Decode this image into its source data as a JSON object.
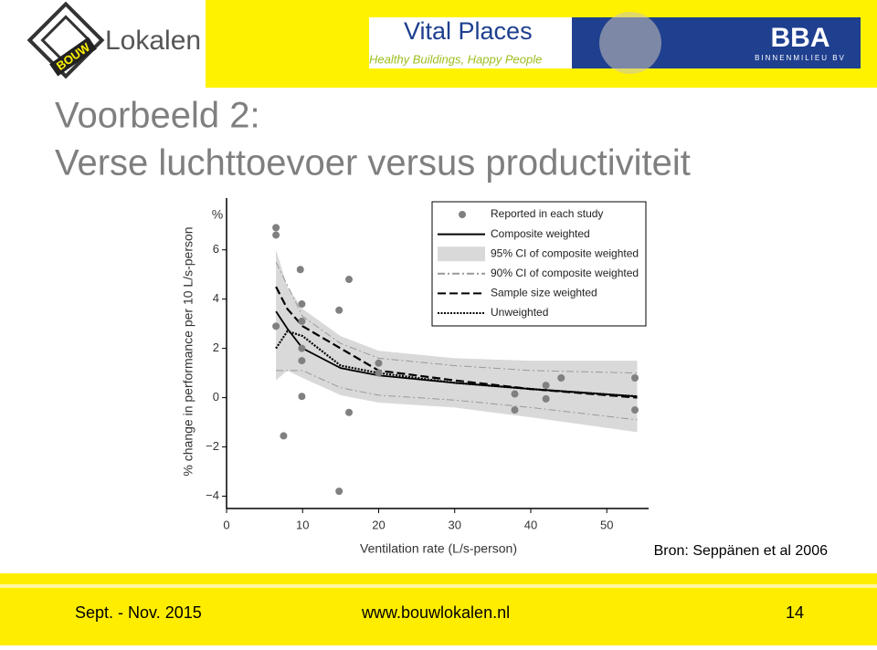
{
  "header": {
    "logo_badge": "BOUW",
    "logo_text": "Lokalen",
    "vital_title": "Vital Places",
    "vital_tagline": "Healthy Buildings, Happy People",
    "bba_title": "BBA",
    "bba_subtitle": "BINNENMILIEU BV"
  },
  "slide": {
    "title_line1": "Voorbeeld 2:",
    "title_line2": "Verse luchttoevoer versus productiviteit",
    "source": "Bron: Seppänen et al 2006"
  },
  "footer": {
    "date": "Sept. - Nov. 2015",
    "url": "www.bouwlokalen.nl",
    "page": "14"
  },
  "chart_data": {
    "type": "scatter",
    "x_label": "Ventilation rate (L/s-person)",
    "y_label": "% change in performance per 10 L/s-person",
    "y_unit": "%",
    "xlim": [
      0,
      55.5
    ],
    "xticks": [
      0,
      10,
      20,
      30,
      40,
      50
    ],
    "ylim": [
      -4.5,
      8.1
    ],
    "yticks": [
      {
        "value": -4,
        "label": "−4"
      },
      {
        "value": -2,
        "label": "−2"
      },
      0,
      2,
      4,
      6
    ],
    "legend": "top-right",
    "series": [
      {
        "name": "Reported in each study",
        "kind": "scatter",
        "color": "#808080",
        "x": [
          6.5,
          6.5,
          6.5,
          7.5,
          9.7,
          9.9,
          9.9,
          9.9,
          9.9,
          9.9,
          14.8,
          14.8,
          16.1,
          16.1,
          20,
          20,
          37.9,
          37.9,
          42,
          42,
          44,
          53.7,
          53.7
        ],
        "values": [
          6.9,
          6.6,
          2.9,
          -1.55,
          5.2,
          3.8,
          3.1,
          2.0,
          1.5,
          0.05,
          3.55,
          -3.8,
          4.8,
          -0.6,
          1.4,
          1.0,
          0.15,
          -0.5,
          0.5,
          -0.05,
          0.8,
          0.8,
          -0.5
        ]
      },
      {
        "name": "Composite weighted",
        "kind": "line",
        "dash": "solid",
        "color": "#000000",
        "x": [
          6.5,
          8,
          10,
          15,
          20,
          30,
          40,
          54
        ],
        "values": [
          3.5,
          2.8,
          2.0,
          1.2,
          0.9,
          0.6,
          0.35,
          0.05
        ]
      },
      {
        "name": "95% CI of composite weighted",
        "kind": "band",
        "color": "#d9d9d9",
        "x": [
          6.5,
          8,
          10,
          15,
          20,
          30,
          40,
          54
        ],
        "upper": [
          6.0,
          4.5,
          3.6,
          2.5,
          1.9,
          1.6,
          1.5,
          1.5
        ],
        "lower": [
          0.7,
          1.1,
          0.8,
          0.1,
          -0.2,
          -0.4,
          -0.8,
          -1.4
        ]
      },
      {
        "name": "90% CI of composite weighted",
        "kind": "bounds",
        "dash": "dashdot",
        "color": "#999999",
        "x": [
          6.5,
          10,
          15,
          20,
          30,
          40,
          54
        ],
        "upper": [
          5.5,
          3.3,
          2.2,
          1.6,
          1.3,
          1.1,
          1.0
        ],
        "lower": [
          1.1,
          1.1,
          0.4,
          0.1,
          -0.1,
          -0.4,
          -0.9
        ]
      },
      {
        "name": "Sample size weighted",
        "kind": "line",
        "dash": "dashed",
        "color": "#000000",
        "x": [
          6.5,
          8,
          10,
          15,
          20,
          30,
          40,
          54
        ],
        "values": [
          4.5,
          3.6,
          2.9,
          2.0,
          1.1,
          0.7,
          0.35,
          0.0
        ]
      },
      {
        "name": "Unweighted",
        "kind": "line",
        "dash": "dotted",
        "color": "#000000",
        "x": [
          6.5,
          8,
          10,
          15,
          20,
          30,
          40,
          54
        ],
        "values": [
          2.0,
          2.7,
          2.5,
          1.3,
          1.0,
          0.6,
          0.35,
          0.05
        ]
      }
    ]
  }
}
